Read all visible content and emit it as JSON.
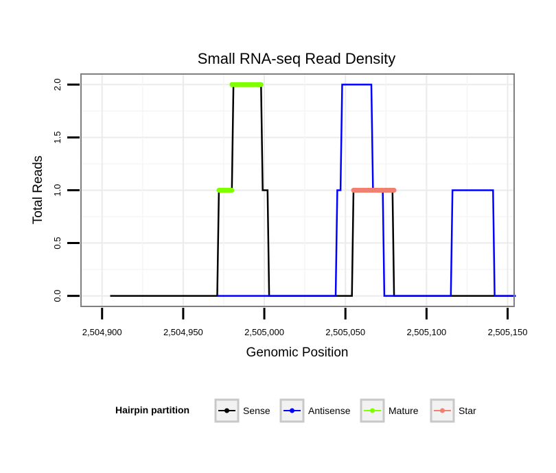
{
  "chart_data": {
    "type": "line",
    "title": "Small RNA-seq Read Density",
    "xlabel": "Genomic Position",
    "ylabel": "Total Reads",
    "xlim": [
      2504887,
      2505154
    ],
    "ylim": [
      -0.1,
      2.1
    ],
    "x_ticks": [
      2504900,
      2504950,
      2505000,
      2505050,
      2505100,
      2505150
    ],
    "x_tick_labels": [
      "2,504,900",
      "2,504,950",
      "2,505,000",
      "2,505,050",
      "2,505,100",
      "2,505,150"
    ],
    "y_ticks": [
      0,
      0.5,
      1,
      1.5,
      2
    ],
    "y_tick_labels": [
      "0.0",
      "0.5",
      "1.0",
      "1.5",
      "2.0"
    ],
    "grid": true,
    "legend": {
      "title": "Hairpin partition",
      "position": "bottom",
      "entries": [
        {
          "name": "Sense",
          "color": "#000000"
        },
        {
          "name": "Antisense",
          "color": "#0000ff"
        },
        {
          "name": "Mature",
          "color": "#7fff00"
        },
        {
          "name": "Star",
          "color": "#f08070"
        }
      ]
    },
    "series": [
      {
        "name": "Sense",
        "color": "#000000",
        "width": 2.5,
        "x": [
          2504905,
          2504971,
          2504972,
          2504980,
          2504981,
          2504998,
          2504999,
          2505002,
          2505003,
          2505054,
          2505055,
          2505079,
          2505080,
          2505155
        ],
        "y": [
          0,
          0,
          1,
          1,
          2,
          2,
          1,
          1,
          0,
          0,
          1,
          1,
          0,
          0
        ]
      },
      {
        "name": "Antisense",
        "color": "#0000ff",
        "width": 2.5,
        "x": [
          2504971,
          2505044,
          2505045,
          2505047,
          2505048,
          2505066,
          2505067,
          2505073,
          2505074,
          2505115,
          2505116,
          2505141,
          2505142,
          2505155
        ],
        "y": [
          0,
          0,
          1,
          1,
          2,
          2,
          1,
          1,
          0,
          0,
          1,
          1,
          0,
          0
        ]
      },
      {
        "name": "Mature",
        "color": "#7fff00",
        "width": 7,
        "segments": true,
        "x": [
          2504972,
          2504980,
          2504980,
          2504998
        ],
        "y": [
          1,
          1,
          2,
          2
        ]
      },
      {
        "name": "Star",
        "color": "#f08070",
        "width": 7,
        "segments": true,
        "x": [
          2505055,
          2505080
        ],
        "y": [
          1,
          1
        ]
      }
    ]
  }
}
